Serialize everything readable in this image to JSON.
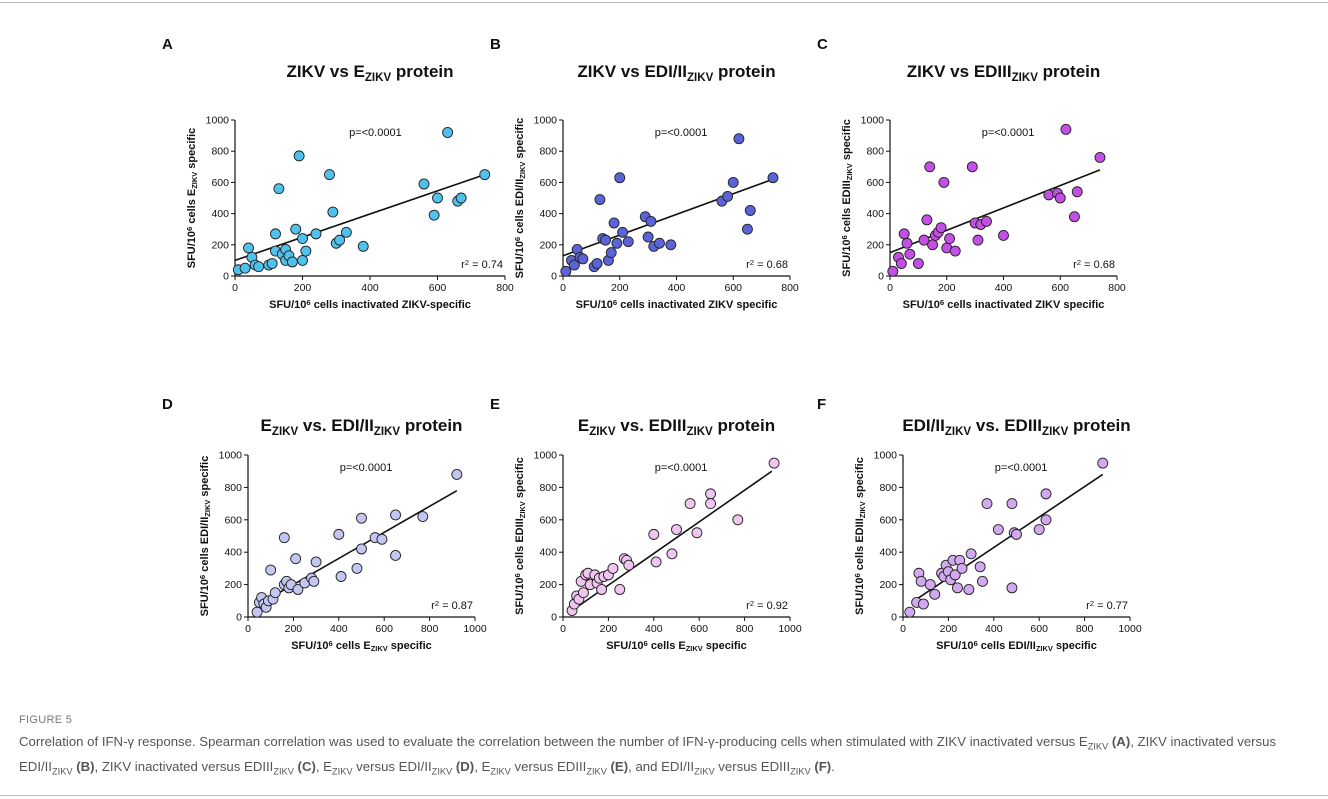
{
  "figure": {
    "label": "FIGURE 5",
    "caption_runs": [
      {
        "t": "Correlation of IFN-γ response. Spearman correlation was used to evaluate the correlation between the number of IFN-γ-producing cells when stimulated with ZIKV inactivated versus E"
      },
      {
        "t": "ZIKV",
        "sub": true
      },
      {
        "t": " "
      },
      {
        "t": "(A)",
        "bold": true
      },
      {
        "t": ", ZIKV inactivated versus EDI/II"
      },
      {
        "t": "ZIKV",
        "sub": true
      },
      {
        "t": " "
      },
      {
        "t": "(B)",
        "bold": true
      },
      {
        "t": ", ZIKV inactivated versus EDIII"
      },
      {
        "t": "ZIKV",
        "sub": true
      },
      {
        "t": " "
      },
      {
        "t": "(C)",
        "bold": true
      },
      {
        "t": ", E"
      },
      {
        "t": "ZIKV",
        "sub": true
      },
      {
        "t": " versus EDI/II"
      },
      {
        "t": "ZIKV",
        "sub": true
      },
      {
        "t": " "
      },
      {
        "t": "(D)",
        "bold": true
      },
      {
        "t": ", E"
      },
      {
        "t": "ZIKV",
        "sub": true
      },
      {
        "t": " versus EDIII"
      },
      {
        "t": "ZIKV",
        "sub": true
      },
      {
        "t": " "
      },
      {
        "t": "(E)",
        "bold": true
      },
      {
        "t": ", and EDI/II"
      },
      {
        "t": "ZIKV",
        "sub": true
      },
      {
        "t": " versus EDIII"
      },
      {
        "t": "ZIKV",
        "sub": true
      },
      {
        "t": " "
      },
      {
        "t": "(F)",
        "bold": true
      },
      {
        "t": "."
      }
    ]
  },
  "chart_data": [
    {
      "panel": "A",
      "type": "scatter",
      "title": [
        {
          "t": "ZIKV vs E"
        },
        {
          "t": "ZIKV",
          "sub": true
        },
        {
          "t": " protein"
        }
      ],
      "xlabel": [
        {
          "t": "SFU/10"
        },
        {
          "t": "6",
          "sup": true
        },
        {
          "t": " cells inactivated ZIKV-specific"
        }
      ],
      "ylabel": [
        {
          "t": "SFU/10"
        },
        {
          "t": "6",
          "sup": true
        },
        {
          "t": " cells E"
        },
        {
          "t": "ZIKV",
          "sub": true
        },
        {
          "t": " specific"
        }
      ],
      "xlim": [
        0,
        800
      ],
      "ylim": [
        0,
        1000
      ],
      "xticks": [
        0,
        200,
        400,
        600,
        800
      ],
      "yticks": [
        0,
        200,
        400,
        600,
        800,
        1000
      ],
      "pvalue": "p=<0.0001",
      "r2_label": "r",
      "r2_exp": "2",
      "r2_value": " = 0.74",
      "color": "#4fc1ec",
      "regression": [
        [
          0,
          100
        ],
        [
          740,
          650
        ]
      ],
      "points": [
        [
          10,
          40
        ],
        [
          30,
          50
        ],
        [
          40,
          180
        ],
        [
          50,
          120
        ],
        [
          60,
          70
        ],
        [
          70,
          60
        ],
        [
          100,
          70
        ],
        [
          110,
          80
        ],
        [
          120,
          270
        ],
        [
          120,
          160
        ],
        [
          130,
          560
        ],
        [
          140,
          140
        ],
        [
          150,
          100
        ],
        [
          150,
          170
        ],
        [
          160,
          130
        ],
        [
          170,
          90
        ],
        [
          180,
          300
        ],
        [
          190,
          770
        ],
        [
          200,
          100
        ],
        [
          200,
          240
        ],
        [
          210,
          160
        ],
        [
          240,
          270
        ],
        [
          280,
          650
        ],
        [
          290,
          410
        ],
        [
          300,
          210
        ],
        [
          310,
          230
        ],
        [
          330,
          280
        ],
        [
          380,
          190
        ],
        [
          560,
          590
        ],
        [
          590,
          390
        ],
        [
          600,
          500
        ],
        [
          630,
          920
        ],
        [
          660,
          480
        ],
        [
          670,
          500
        ],
        [
          740,
          650
        ]
      ]
    },
    {
      "panel": "B",
      "type": "scatter",
      "title": [
        {
          "t": "ZIKV vs EDI/II"
        },
        {
          "t": "ZIKV",
          "sub": true
        },
        {
          "t": " protein"
        }
      ],
      "xlabel": [
        {
          "t": "SFU/10"
        },
        {
          "t": "6",
          "sup": true
        },
        {
          "t": " cells inactivated ZIKV specific"
        }
      ],
      "ylabel": [
        {
          "t": "SFU/10"
        },
        {
          "t": "6",
          "sup": true
        },
        {
          "t": " cells EDI/II"
        },
        {
          "t": "ZIKV",
          "sub": true
        },
        {
          "t": " specific"
        }
      ],
      "xlim": [
        0,
        800
      ],
      "ylim": [
        0,
        1000
      ],
      "xticks": [
        0,
        200,
        400,
        600,
        800
      ],
      "yticks": [
        0,
        200,
        400,
        600,
        800,
        1000
      ],
      "pvalue": "p=<0.0001",
      "r2_label": "r",
      "r2_exp": "2",
      "r2_value": " = 0.68",
      "color": "#5a64d8",
      "regression": [
        [
          0,
          130
        ],
        [
          740,
          620
        ]
      ],
      "points": [
        [
          10,
          30
        ],
        [
          30,
          100
        ],
        [
          40,
          70
        ],
        [
          50,
          170
        ],
        [
          60,
          120
        ],
        [
          70,
          110
        ],
        [
          110,
          60
        ],
        [
          120,
          80
        ],
        [
          130,
          490
        ],
        [
          140,
          240
        ],
        [
          150,
          230
        ],
        [
          160,
          100
        ],
        [
          170,
          150
        ],
        [
          180,
          340
        ],
        [
          190,
          210
        ],
        [
          200,
          630
        ],
        [
          210,
          280
        ],
        [
          230,
          220
        ],
        [
          290,
          380
        ],
        [
          300,
          250
        ],
        [
          310,
          350
        ],
        [
          320,
          190
        ],
        [
          340,
          210
        ],
        [
          380,
          200
        ],
        [
          560,
          480
        ],
        [
          580,
          510
        ],
        [
          600,
          600
        ],
        [
          620,
          880
        ],
        [
          650,
          300
        ],
        [
          660,
          420
        ],
        [
          740,
          630
        ]
      ]
    },
    {
      "panel": "C",
      "type": "scatter",
      "title": [
        {
          "t": "ZIKV vs EDIII"
        },
        {
          "t": "ZIKV",
          "sub": true
        },
        {
          "t": " protein"
        }
      ],
      "xlabel": [
        {
          "t": "SFU/10"
        },
        {
          "t": "6",
          "sup": true
        },
        {
          "t": " cells inactivated ZIKV specific"
        }
      ],
      "ylabel": [
        {
          "t": "SFU/10"
        },
        {
          "t": "6",
          "sup": true
        },
        {
          "t": " cells EDIII"
        },
        {
          "t": "ZIKV",
          "sub": true
        },
        {
          "t": " specific"
        }
      ],
      "xlim": [
        0,
        800
      ],
      "ylim": [
        0,
        1000
      ],
      "xticks": [
        0,
        200,
        400,
        600,
        800
      ],
      "yticks": [
        0,
        200,
        400,
        600,
        800,
        1000
      ],
      "pvalue": "p=<0.0001",
      "r2_label": "r",
      "r2_exp": "2",
      "r2_value": " = 0.68",
      "color": "#c44fe6",
      "regression": [
        [
          0,
          150
        ],
        [
          740,
          680
        ]
      ],
      "points": [
        [
          10,
          30
        ],
        [
          30,
          120
        ],
        [
          40,
          80
        ],
        [
          50,
          270
        ],
        [
          60,
          210
        ],
        [
          70,
          140
        ],
        [
          100,
          80
        ],
        [
          120,
          230
        ],
        [
          130,
          360
        ],
        [
          140,
          700
        ],
        [
          150,
          200
        ],
        [
          160,
          260
        ],
        [
          170,
          280
        ],
        [
          180,
          310
        ],
        [
          190,
          600
        ],
        [
          200,
          180
        ],
        [
          210,
          240
        ],
        [
          230,
          160
        ],
        [
          290,
          700
        ],
        [
          300,
          340
        ],
        [
          310,
          230
        ],
        [
          320,
          330
        ],
        [
          340,
          350
        ],
        [
          400,
          260
        ],
        [
          560,
          520
        ],
        [
          590,
          530
        ],
        [
          600,
          500
        ],
        [
          620,
          940
        ],
        [
          650,
          380
        ],
        [
          660,
          540
        ],
        [
          740,
          760
        ]
      ]
    },
    {
      "panel": "D",
      "type": "scatter",
      "title": [
        {
          "t": "E"
        },
        {
          "t": "ZIKV",
          "sub": true
        },
        {
          "t": " vs. EDI/II"
        },
        {
          "t": "ZIKV",
          "sub": true
        },
        {
          "t": " protein"
        }
      ],
      "xlabel": [
        {
          "t": "SFU/10"
        },
        {
          "t": "6",
          "sup": true
        },
        {
          "t": " cells E"
        },
        {
          "t": "ZIKV",
          "sub": true
        },
        {
          "t": "  specific"
        }
      ],
      "ylabel": [
        {
          "t": "SFU/10"
        },
        {
          "t": "6",
          "sup": true
        },
        {
          "t": " cells EDI/II"
        },
        {
          "t": "ZIKV",
          "sub": true
        },
        {
          "t": " specific"
        }
      ],
      "xlim": [
        0,
        1000
      ],
      "ylim": [
        0,
        1000
      ],
      "xticks": [
        0,
        200,
        400,
        600,
        800,
        1000
      ],
      "yticks": [
        0,
        200,
        400,
        600,
        800,
        1000
      ],
      "pvalue": "p=<0.0001",
      "r2_label": "r",
      "r2_exp": "2",
      "r2_value": " = 0.87",
      "color": "#c2c6f0",
      "regression": [
        [
          50,
          80
        ],
        [
          920,
          780
        ]
      ],
      "points": [
        [
          40,
          30
        ],
        [
          50,
          90
        ],
        [
          60,
          120
        ],
        [
          70,
          80
        ],
        [
          80,
          60
        ],
        [
          90,
          100
        ],
        [
          100,
          290
        ],
        [
          110,
          110
        ],
        [
          120,
          150
        ],
        [
          160,
          200
        ],
        [
          160,
          490
        ],
        [
          170,
          220
        ],
        [
          180,
          180
        ],
        [
          190,
          200
        ],
        [
          210,
          360
        ],
        [
          220,
          170
        ],
        [
          250,
          210
        ],
        [
          280,
          240
        ],
        [
          290,
          220
        ],
        [
          300,
          340
        ],
        [
          400,
          510
        ],
        [
          410,
          250
        ],
        [
          480,
          300
        ],
        [
          500,
          420
        ],
        [
          500,
          610
        ],
        [
          560,
          490
        ],
        [
          590,
          480
        ],
        [
          650,
          380
        ],
        [
          650,
          630
        ],
        [
          770,
          620
        ],
        [
          920,
          880
        ]
      ]
    },
    {
      "panel": "E",
      "type": "scatter",
      "title": [
        {
          "t": "E"
        },
        {
          "t": "ZIKV",
          "sub": true
        },
        {
          "t": " vs. EDIII"
        },
        {
          "t": "ZIKV",
          "sub": true
        },
        {
          "t": " protein"
        }
      ],
      "xlabel": [
        {
          "t": "SFU/10"
        },
        {
          "t": "6",
          "sup": true
        },
        {
          "t": " cells E"
        },
        {
          "t": "ZIKV",
          "sub": true
        },
        {
          "t": "  specific"
        }
      ],
      "ylabel": [
        {
          "t": "SFU/10"
        },
        {
          "t": "6",
          "sup": true
        },
        {
          "t": " cells EDIII"
        },
        {
          "t": "ZIKV",
          "sub": true
        },
        {
          "t": " specific"
        }
      ],
      "xlim": [
        0,
        1000
      ],
      "ylim": [
        0,
        1000
      ],
      "xticks": [
        0,
        200,
        400,
        600,
        800,
        1000
      ],
      "yticks": [
        0,
        200,
        400,
        600,
        800,
        1000
      ],
      "pvalue": "p=<0.0001",
      "r2_label": "r",
      "r2_exp": "2",
      "r2_value": " = 0.92",
      "color": "#f0c6f0",
      "regression": [
        [
          40,
          40
        ],
        [
          920,
          900
        ]
      ],
      "points": [
        [
          40,
          40
        ],
        [
          50,
          80
        ],
        [
          60,
          130
        ],
        [
          70,
          110
        ],
        [
          80,
          220
        ],
        [
          90,
          150
        ],
        [
          100,
          260
        ],
        [
          110,
          270
        ],
        [
          120,
          200
        ],
        [
          140,
          260
        ],
        [
          150,
          210
        ],
        [
          160,
          240
        ],
        [
          170,
          170
        ],
        [
          180,
          250
        ],
        [
          200,
          260
        ],
        [
          220,
          300
        ],
        [
          250,
          170
        ],
        [
          270,
          360
        ],
        [
          280,
          350
        ],
        [
          290,
          320
        ],
        [
          400,
          510
        ],
        [
          410,
          340
        ],
        [
          480,
          390
        ],
        [
          500,
          540
        ],
        [
          560,
          700
        ],
        [
          590,
          520
        ],
        [
          650,
          760
        ],
        [
          650,
          700
        ],
        [
          770,
          600
        ],
        [
          930,
          950
        ]
      ]
    },
    {
      "panel": "F",
      "type": "scatter",
      "title": [
        {
          "t": "EDI/II"
        },
        {
          "t": "ZIKV",
          "sub": true
        },
        {
          "t": " vs. EDIII"
        },
        {
          "t": "ZIKV",
          "sub": true
        },
        {
          "t": " protein"
        }
      ],
      "xlabel": [
        {
          "t": "SFU/10"
        },
        {
          "t": "6",
          "sup": true
        },
        {
          "t": " cells EDI/II"
        },
        {
          "t": "ZIKV",
          "sub": true
        },
        {
          "t": "  specific"
        }
      ],
      "ylabel": [
        {
          "t": "SFU/10"
        },
        {
          "t": "6",
          "sup": true
        },
        {
          "t": " cells EDIII"
        },
        {
          "t": "ZIKV",
          "sub": true
        },
        {
          "t": " specific"
        }
      ],
      "xlim": [
        0,
        1000
      ],
      "ylim": [
        0,
        1000
      ],
      "xticks": [
        0,
        200,
        400,
        600,
        800,
        1000
      ],
      "yticks": [
        0,
        200,
        400,
        600,
        800,
        1000
      ],
      "pvalue": "p=<0.0001",
      "r2_label": "r",
      "r2_exp": "2",
      "r2_value": " = 0.77",
      "color": "#d2a9f0",
      "regression": [
        [
          60,
          110
        ],
        [
          880,
          880
        ]
      ],
      "points": [
        [
          30,
          30
        ],
        [
          60,
          90
        ],
        [
          70,
          270
        ],
        [
          80,
          220
        ],
        [
          90,
          80
        ],
        [
          120,
          200
        ],
        [
          140,
          140
        ],
        [
          170,
          270
        ],
        [
          180,
          250
        ],
        [
          190,
          320
        ],
        [
          200,
          280
        ],
        [
          210,
          230
        ],
        [
          220,
          350
        ],
        [
          230,
          260
        ],
        [
          240,
          180
        ],
        [
          250,
          350
        ],
        [
          260,
          300
        ],
        [
          290,
          170
        ],
        [
          300,
          390
        ],
        [
          340,
          310
        ],
        [
          350,
          220
        ],
        [
          370,
          700
        ],
        [
          420,
          540
        ],
        [
          480,
          180
        ],
        [
          480,
          700
        ],
        [
          490,
          520
        ],
        [
          500,
          510
        ],
        [
          600,
          540
        ],
        [
          630,
          760
        ],
        [
          630,
          600
        ],
        [
          880,
          950
        ]
      ]
    }
  ]
}
